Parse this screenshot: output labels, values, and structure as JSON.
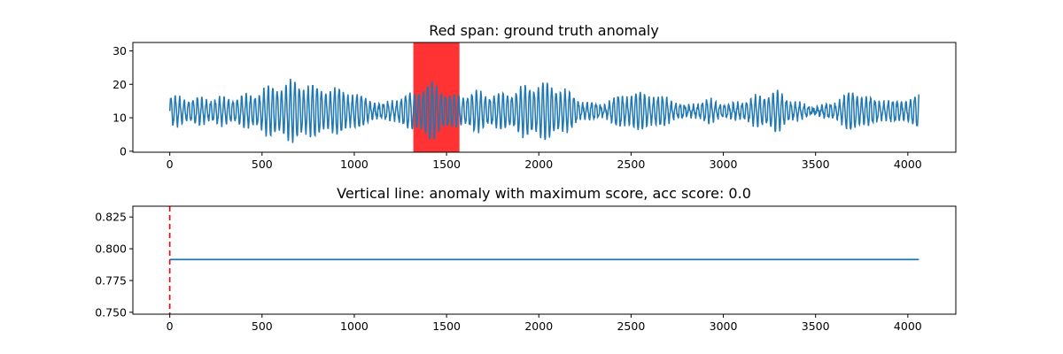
{
  "chart_data": [
    {
      "type": "line",
      "title": "Red span: ground truth anomaly",
      "xlabel": "",
      "ylabel": "",
      "xlim": [
        -200,
        4260
      ],
      "ylim": [
        -0.3,
        32.5
      ],
      "xticks": [
        0,
        500,
        1000,
        1500,
        2000,
        2500,
        3000,
        3500,
        4000
      ],
      "xtick_labels": [
        "0",
        "500",
        "1000",
        "1500",
        "2000",
        "2500",
        "3000",
        "3500",
        "4000"
      ],
      "yticks": [
        0,
        10,
        20,
        30
      ],
      "ytick_labels": [
        "0",
        "10",
        "20",
        "30"
      ],
      "grid": false,
      "anomaly_span": {
        "x_start": 1320,
        "x_end": 1570,
        "color": "#ff0000"
      },
      "series": [
        {
          "color": "#1f77b4",
          "x_max": 4060,
          "baseline": 12,
          "envelope": [
            [
              0,
              16.5
            ],
            [
              120,
              16
            ],
            [
              300,
              16
            ],
            [
              430,
              17
            ],
            [
              560,
              20
            ],
            [
              680,
              21.5
            ],
            [
              800,
              19.5
            ],
            [
              920,
              19
            ],
            [
              1030,
              17
            ],
            [
              1150,
              14
            ],
            [
              1270,
              16.5
            ],
            [
              1420,
              21
            ],
            [
              1530,
              16.5
            ],
            [
              1650,
              18
            ],
            [
              1780,
              17
            ],
            [
              1900,
              19
            ],
            [
              2010,
              21
            ],
            [
              2120,
              19.5
            ],
            [
              2230,
              15
            ],
            [
              2350,
              14
            ],
            [
              2440,
              17
            ],
            [
              2550,
              18
            ],
            [
              2700,
              16
            ],
            [
              2800,
              13.5
            ],
            [
              2920,
              15.5
            ],
            [
              3030,
              14
            ],
            [
              3160,
              16
            ],
            [
              3280,
              18.5
            ],
            [
              3380,
              15
            ],
            [
              3480,
              13
            ],
            [
              3600,
              14.5
            ],
            [
              3700,
              18.5
            ],
            [
              3820,
              15.5
            ],
            [
              3950,
              15
            ],
            [
              4060,
              17
            ]
          ]
        }
      ]
    },
    {
      "type": "line",
      "title": "Vertical line: anomaly with maximum score, acc score: 0.0",
      "xlabel": "",
      "ylabel": "",
      "xlim": [
        -200,
        4260
      ],
      "ylim": [
        0.7485,
        0.8335
      ],
      "xticks": [
        0,
        500,
        1000,
        1500,
        2000,
        2500,
        3000,
        3500,
        4000
      ],
      "xtick_labels": [
        "0",
        "500",
        "1000",
        "1500",
        "2000",
        "2500",
        "3000",
        "3500",
        "4000"
      ],
      "yticks": [
        0.75,
        0.775,
        0.8,
        0.825
      ],
      "ytick_labels": [
        "0.750",
        "0.775",
        "0.800",
        "0.825"
      ],
      "grid": false,
      "vline": {
        "x": 0,
        "color": "#ff0000",
        "style": "dashed"
      },
      "series": [
        {
          "color": "#1f77b4",
          "x": [
            0,
            4060
          ],
          "y": [
            0.7915,
            0.7915
          ]
        }
      ]
    }
  ]
}
